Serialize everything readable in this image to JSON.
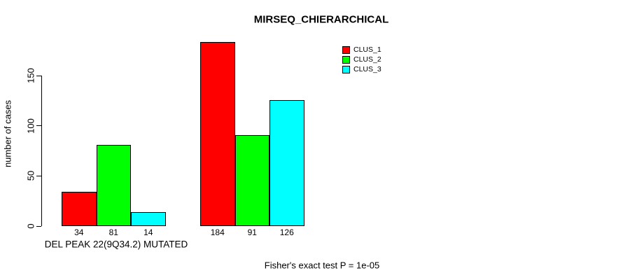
{
  "chart_data": {
    "type": "bar",
    "title": "MIRSEQ_CHIERARCHICAL",
    "xlabel": "",
    "ylabel": "number of cases",
    "ylim": [
      0,
      150
    ],
    "yticks": [
      0,
      50,
      100,
      150
    ],
    "grid": false,
    "categories": [
      "DEL PEAK 22(9Q34.2) MUTATED",
      ""
    ],
    "series": [
      {
        "name": "CLUS_1",
        "color": "#ff0000",
        "values": [
          34,
          184
        ]
      },
      {
        "name": "CLUS_2",
        "color": "#00ff00",
        "values": [
          81,
          91
        ]
      },
      {
        "name": "CLUS_3",
        "color": "#00ffff",
        "values": [
          14,
          126
        ]
      }
    ],
    "bar_value_labels": [
      [
        34,
        81,
        14
      ],
      [
        184,
        91,
        126
      ]
    ],
    "legend": {
      "position": "top-right",
      "entries": [
        "CLUS_1",
        "CLUS_2",
        "CLUS_3"
      ]
    },
    "annotation": "Fisher's exact test P = 1e-05"
  }
}
